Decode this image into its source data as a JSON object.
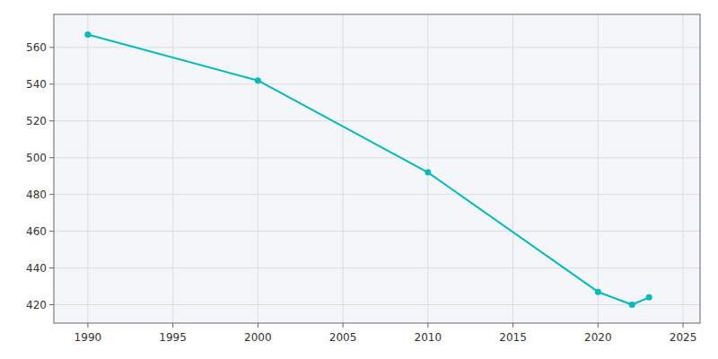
{
  "chart_data": {
    "type": "line",
    "x": [
      1990,
      2000,
      2010,
      2020,
      2022,
      2023
    ],
    "values": [
      567,
      542,
      492,
      427,
      420,
      424
    ],
    "color": "#00bcbc",
    "marker": "circle",
    "xlim": [
      1988,
      2026
    ],
    "ylim": [
      410,
      578
    ],
    "xticks": [
      1990,
      1995,
      2000,
      2005,
      2010,
      2015,
      2020,
      2025
    ],
    "yticks": [
      420,
      440,
      460,
      480,
      500,
      520,
      540,
      560
    ],
    "grid": true
  }
}
